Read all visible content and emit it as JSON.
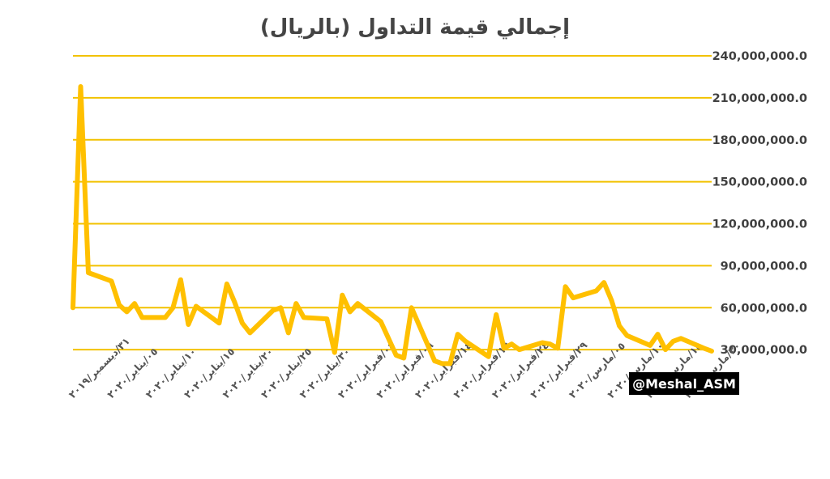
{
  "watermark": "@Meshal_ASM",
  "colors": {
    "series": "#FFC000",
    "grid": "#F2C200",
    "watermark_bg": "#000000"
  },
  "chart_data": {
    "type": "line",
    "title": "إجمالي قيمة التداول (بالريال)",
    "xlabel": "",
    "ylabel": "",
    "ylim": [
      0,
      240000000
    ],
    "yticks": [
      30000000,
      60000000,
      90000000,
      120000000,
      150000000,
      180000000,
      210000000,
      240000000
    ],
    "ytick_labels": [
      "30,000,000.0",
      "60,000,000.0",
      "90,000,000.0",
      "120,000,000.0",
      "150,000,000.0",
      "180,000,000.0",
      "210,000,000.0",
      "240,000,000.0"
    ],
    "x_range": [
      "2019-12-31",
      "2020-03-23"
    ],
    "xticks": [
      "2019-12-31",
      "2020-01-05",
      "2020-01-10",
      "2020-01-15",
      "2020-01-20",
      "2020-01-25",
      "2020-01-30",
      "2020-02-04",
      "2020-02-09",
      "2020-02-14",
      "2020-02-19",
      "2020-02-24",
      "2020-02-29",
      "2020-03-05",
      "2020-03-10",
      "2020-03-15",
      "2020-03-20"
    ],
    "xtick_labels": [
      "٣١/ديسمبر/٢٠١٩",
      "٠٥/يناير/٢٠٢٠",
      "١٠/يناير/٢٠٢٠",
      "١٥/يناير/٢٠٢٠",
      "٢٠/يناير/٢٠٢٠",
      "٢٥/يناير/٢٠٢٠",
      "٣٠/يناير/٢٠٢٠",
      "٠٤/فبراير/٢٠٢٠",
      "٠٩/فبراير/٢٠٢٠",
      "١٤/فبراير/٢٠٢٠",
      "١٩/فبراير/٢٠٢٠",
      "٢٤/فبراير/٢٠٢٠",
      "٢٩/فبراير/٢٠٢٠",
      "٠٥/مارس/٢٠٢٠",
      "١٠/مارس/٢٠٢٠",
      "١٥/مارس/٢٠٢٠",
      "٢٠/مارس/٢٠٢٠"
    ],
    "grid": true,
    "legend": "none",
    "series": [
      {
        "x": [
          "2019-12-31",
          "2020-01-01",
          "2020-01-02",
          "2020-01-05",
          "2020-01-06",
          "2020-01-07",
          "2020-01-08",
          "2020-01-09",
          "2020-01-12",
          "2020-01-13",
          "2020-01-14",
          "2020-01-15",
          "2020-01-16",
          "2020-01-19",
          "2020-01-20",
          "2020-01-21",
          "2020-01-22",
          "2020-01-23",
          "2020-01-26",
          "2020-01-27",
          "2020-01-28",
          "2020-01-29",
          "2020-01-30",
          "2020-02-02",
          "2020-02-03",
          "2020-02-04",
          "2020-02-05",
          "2020-02-06",
          "2020-02-09",
          "2020-02-10",
          "2020-02-11",
          "2020-02-12",
          "2020-02-13",
          "2020-02-16",
          "2020-02-17",
          "2020-02-18",
          "2020-02-19",
          "2020-02-20",
          "2020-02-23",
          "2020-02-24",
          "2020-02-25",
          "2020-02-26",
          "2020-02-27",
          "2020-03-01",
          "2020-03-02",
          "2020-03-03",
          "2020-03-04",
          "2020-03-05",
          "2020-03-08",
          "2020-03-09",
          "2020-03-10",
          "2020-03-11",
          "2020-03-12",
          "2020-03-15",
          "2020-03-16",
          "2020-03-17",
          "2020-03-18",
          "2020-03-19",
          "2020-03-22",
          "2020-03-23"
        ],
        "values": [
          60000000,
          218000000,
          85000000,
          79000000,
          62000000,
          57000000,
          63000000,
          53000000,
          53000000,
          60000000,
          80000000,
          48000000,
          61000000,
          49000000,
          77000000,
          64000000,
          49000000,
          42000000,
          58000000,
          60000000,
          42000000,
          63000000,
          53000000,
          52000000,
          28000000,
          69000000,
          57000000,
          63000000,
          50000000,
          38000000,
          26000000,
          24000000,
          60000000,
          22000000,
          20000000,
          20000000,
          41000000,
          36000000,
          25000000,
          55000000,
          31000000,
          34000000,
          30000000,
          35000000,
          34000000,
          31000000,
          75000000,
          67000000,
          72000000,
          78000000,
          65000000,
          47000000,
          40000000,
          33000000,
          41000000,
          30000000,
          36000000,
          38000000,
          31000000,
          29000000
        ]
      }
    ]
  }
}
